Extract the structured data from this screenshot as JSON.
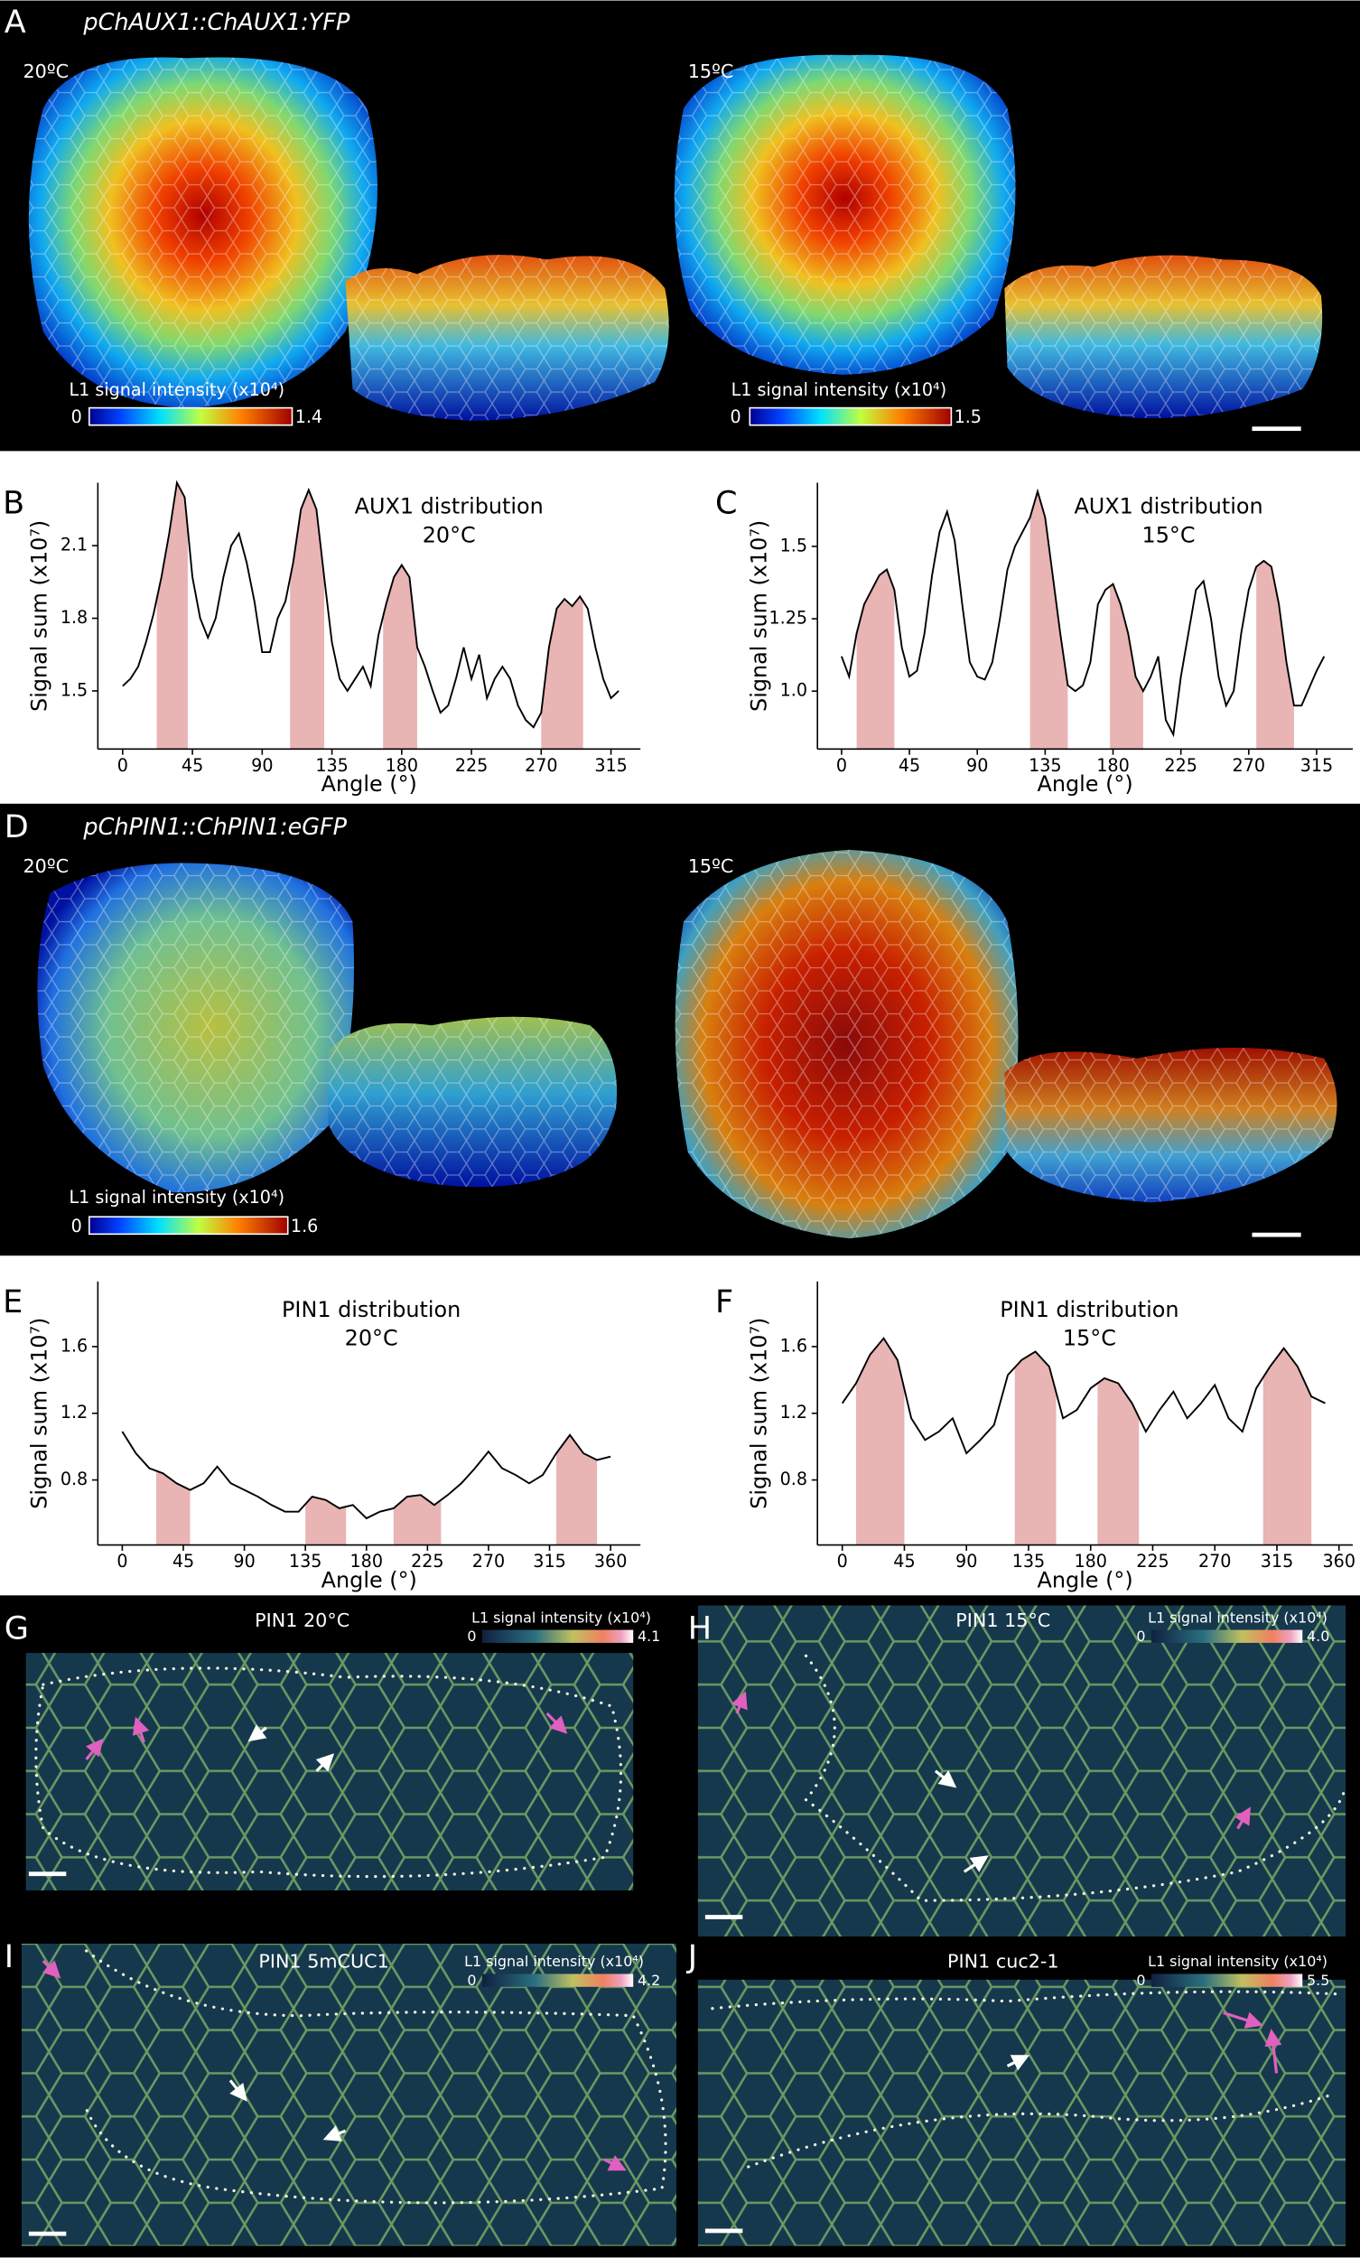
{
  "figure": {
    "A": {
      "label": "A",
      "construct": "pChAUX1::ChAUX1:YFP",
      "left": {
        "temp": "20ºC",
        "scale_title": "L1 signal intensity (x10⁴)",
        "min": 0,
        "max": 1.4
      },
      "right": {
        "temp": "15ºC",
        "scale_title": "L1 signal intensity (x10⁴)",
        "min": 0,
        "max": 1.5
      }
    },
    "D": {
      "label": "D",
      "construct": "pChPIN1::ChPIN1:eGFP",
      "left": {
        "temp": "20ºC",
        "scale_title": "L1 signal intensity (x10⁴)",
        "min": 0,
        "max": 1.6
      },
      "right": {
        "temp": "15ºC"
      }
    },
    "G": {
      "label": "G",
      "title": "PIN1 20°C",
      "scale_title": "L1 signal intensity (x10⁴)",
      "min": 0,
      "max": 4.1
    },
    "H": {
      "label": "H",
      "title": "PIN1 15°C",
      "scale_title": "L1 signal intensity (x10⁴)",
      "min": 0,
      "max": {
        "value": 4,
        "label": "4.0"
      }
    },
    "I": {
      "label": "I",
      "title": "PIN1 5mCUC1",
      "scale_title": "L1 signal intensity (x10⁴)",
      "min": 0,
      "max": 4.2
    },
    "J": {
      "label": "J",
      "title": "PIN1 cuc2-1",
      "scale_title": "L1 signal intensity (x10⁴)",
      "min": 0,
      "max": 5.5
    }
  },
  "chart_data": [
    {
      "type": "line",
      "panel_label": "B",
      "title": "AUX1 distribution",
      "subtitle": "20°C",
      "x_label": "Angle (°)",
      "y_label": "Signal sum (x10⁷)",
      "color": "#000000",
      "highlight_color": "#e8b4b4",
      "x": [
        0,
        5,
        10,
        15,
        20,
        25,
        30,
        35,
        40,
        45,
        50,
        55,
        60,
        65,
        70,
        75,
        80,
        85,
        90,
        95,
        100,
        105,
        110,
        115,
        120,
        125,
        130,
        135,
        140,
        145,
        150,
        155,
        160,
        165,
        170,
        175,
        180,
        185,
        190,
        195,
        200,
        205,
        210,
        215,
        220,
        225,
        230,
        235,
        240,
        245,
        250,
        255,
        260,
        265,
        270,
        275,
        280,
        285,
        290,
        295,
        300,
        305,
        310,
        315,
        320
      ],
      "values": [
        1.52,
        1.55,
        1.6,
        1.7,
        1.82,
        1.97,
        2.15,
        2.36,
        2.3,
        1.97,
        1.8,
        1.72,
        1.8,
        1.97,
        2.1,
        2.15,
        2.03,
        1.87,
        1.66,
        1.66,
        1.8,
        1.87,
        2.03,
        2.25,
        2.33,
        2.25,
        1.97,
        1.7,
        1.55,
        1.5,
        1.55,
        1.6,
        1.52,
        1.73,
        1.86,
        1.97,
        2.02,
        1.97,
        1.68,
        1.6,
        1.5,
        1.41,
        1.44,
        1.55,
        1.68,
        1.55,
        1.65,
        1.47,
        1.55,
        1.6,
        1.55,
        1.44,
        1.38,
        1.35,
        1.41,
        1.68,
        1.84,
        1.88,
        1.85,
        1.89,
        1.84,
        1.68,
        1.55,
        1.47,
        1.5
      ],
      "highlights": [
        [
          22,
          42
        ],
        [
          108,
          130
        ],
        [
          168,
          190
        ],
        [
          270,
          297
        ]
      ],
      "xlim": [
        -16,
        334
      ],
      "ylim": [
        1.26,
        2.36
      ],
      "xticks": [
        0,
        45,
        90,
        135,
        180,
        225,
        270,
        315
      ],
      "yticks": [
        1.5,
        1.8,
        2.1
      ]
    },
    {
      "type": "line",
      "panel_label": "C",
      "title": "AUX1 distribution",
      "subtitle": "15°C",
      "x_label": "Angle (°)",
      "y_label": "Signal sum (x10⁷)",
      "color": "#000000",
      "highlight_color": "#e8b4b4",
      "x": [
        0,
        5,
        10,
        15,
        20,
        25,
        30,
        35,
        40,
        45,
        50,
        55,
        60,
        65,
        70,
        75,
        80,
        85,
        90,
        95,
        100,
        105,
        110,
        115,
        120,
        125,
        130,
        135,
        140,
        145,
        150,
        155,
        160,
        165,
        170,
        175,
        180,
        185,
        190,
        195,
        200,
        205,
        210,
        215,
        220,
        225,
        230,
        235,
        240,
        245,
        250,
        255,
        260,
        265,
        270,
        275,
        280,
        285,
        290,
        295,
        300,
        305,
        310,
        315,
        320
      ],
      "values": [
        1.12,
        1.05,
        1.2,
        1.3,
        1.35,
        1.4,
        1.42,
        1.35,
        1.15,
        1.05,
        1.07,
        1.2,
        1.4,
        1.55,
        1.62,
        1.52,
        1.3,
        1.1,
        1.05,
        1.04,
        1.1,
        1.25,
        1.42,
        1.5,
        1.55,
        1.6,
        1.69,
        1.6,
        1.4,
        1.2,
        1.02,
        1.0,
        1.02,
        1.1,
        1.3,
        1.35,
        1.37,
        1.3,
        1.2,
        1.05,
        1.0,
        1.05,
        1.12,
        0.9,
        0.85,
        1.05,
        1.2,
        1.35,
        1.38,
        1.25,
        1.05,
        0.95,
        1.0,
        1.2,
        1.35,
        1.43,
        1.45,
        1.43,
        1.3,
        1.1,
        0.95,
        0.95,
        1.01,
        1.07,
        1.12
      ],
      "highlights": [
        [
          10,
          35
        ],
        [
          125,
          150
        ],
        [
          178,
          200
        ],
        [
          275,
          300
        ]
      ],
      "xlim": [
        -16,
        339
      ],
      "ylim": [
        0.8,
        1.72
      ],
      "xticks": [
        0,
        45,
        90,
        135,
        180,
        225,
        270,
        315
      ],
      "yticks": [
        {
          "value": 1,
          "label": "1.0"
        },
        1.25,
        1.5
      ]
    },
    {
      "type": "line",
      "panel_label": "E",
      "title": "PIN1 distribution",
      "subtitle": "20°C",
      "x_label": "Angle (°)",
      "y_label": "Signal sum (x10⁷)",
      "color": "#000000",
      "highlight_color": "#e8b4b4",
      "x": [
        0,
        10,
        20,
        30,
        40,
        50,
        60,
        70,
        80,
        90,
        100,
        110,
        120,
        130,
        140,
        150,
        160,
        170,
        180,
        190,
        200,
        210,
        220,
        230,
        240,
        250,
        260,
        270,
        280,
        290,
        300,
        310,
        320,
        330,
        340,
        350,
        360
      ],
      "values": [
        1.09,
        0.96,
        0.87,
        0.84,
        0.78,
        0.74,
        0.78,
        0.88,
        0.78,
        0.74,
        0.7,
        0.65,
        0.61,
        0.61,
        0.7,
        0.68,
        0.63,
        0.65,
        0.57,
        0.61,
        0.63,
        0.7,
        0.71,
        0.65,
        0.71,
        0.78,
        0.87,
        0.97,
        0.87,
        0.83,
        0.78,
        0.83,
        0.96,
        1.07,
        0.96,
        0.92,
        0.94
      ],
      "highlights": [
        [
          25,
          50
        ],
        [
          135,
          165
        ],
        [
          200,
          235
        ],
        [
          320,
          350
        ]
      ],
      "xlim": [
        -18,
        382
      ],
      "ylim": [
        0.41,
        1.99
      ],
      "xticks": [
        0,
        45,
        90,
        135,
        180,
        225,
        270,
        315,
        360
      ],
      "yticks": [
        0.8,
        1.2,
        1.6
      ]
    },
    {
      "type": "line",
      "panel_label": "F",
      "title": "PIN1 distribution",
      "subtitle": "15°C",
      "x_label": "Angle (°)",
      "y_label": "Signal sum (x10⁷)",
      "color": "#000000",
      "highlight_color": "#e8b4b4",
      "x": [
        0,
        10,
        20,
        30,
        40,
        50,
        60,
        70,
        80,
        90,
        100,
        110,
        120,
        130,
        140,
        150,
        160,
        170,
        180,
        190,
        200,
        210,
        220,
        230,
        240,
        250,
        260,
        270,
        280,
        290,
        300,
        310,
        320,
        330,
        340,
        350
      ],
      "values": [
        1.26,
        1.38,
        1.55,
        1.65,
        1.52,
        1.17,
        1.04,
        1.09,
        1.17,
        0.96,
        1.04,
        1.13,
        1.43,
        1.52,
        1.57,
        1.48,
        1.17,
        1.22,
        1.35,
        1.41,
        1.38,
        1.26,
        1.09,
        1.22,
        1.33,
        1.17,
        1.26,
        1.37,
        1.17,
        1.09,
        1.35,
        1.48,
        1.59,
        1.48,
        1.3,
        1.26
      ],
      "highlights": [
        [
          10,
          45
        ],
        [
          125,
          155
        ],
        [
          185,
          215
        ],
        [
          305,
          340
        ]
      ],
      "xlim": [
        -18,
        370
      ],
      "ylim": [
        0.41,
        1.99
      ],
      "xticks": [
        0,
        45,
        90,
        135,
        180,
        225,
        270,
        315,
        360
      ],
      "yticks": [
        0.8,
        1.2,
        1.6
      ]
    }
  ]
}
